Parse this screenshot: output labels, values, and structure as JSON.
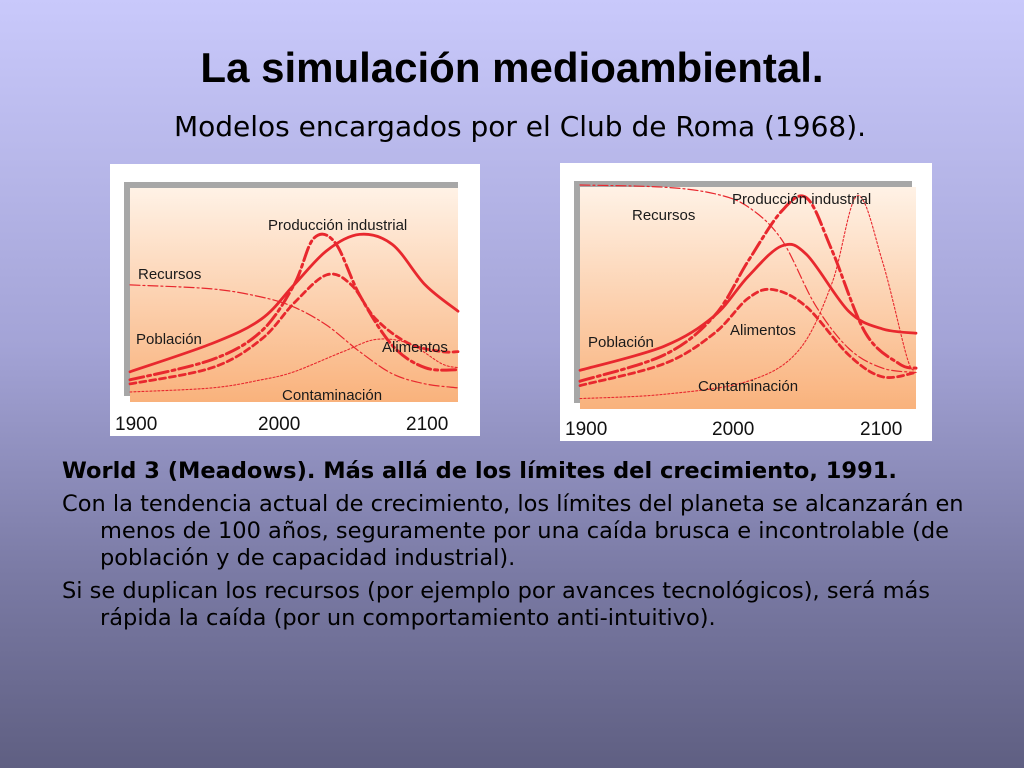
{
  "slide": {
    "title": "La simulación medioambiental.",
    "subtitle": "Modelos encargados por el Club de Roma (1968).",
    "paragraphs": [
      {
        "text": "World 3 (Meadows). Más allá de los límites del crecimiento, 1991.",
        "bold": true
      },
      {
        "text": "Con la tendencia actual de crecimiento, los límites del planeta se alcanzarán en menos de 100 años, seguramente por una caída brusca e incontrolable (de población y de capacidad industrial).",
        "bold": false
      },
      {
        "text": "Si se duplican los recursos (por ejemplo por avances tecnológicos), será más rápida la caída (por un comportamiento anti-intuitivo).",
        "bold": false
      }
    ]
  },
  "colors": {
    "curve": "#e8282e",
    "panel_top": "#fff2e6",
    "panel_bottom": "#f9b27c",
    "shadow": "#a7a7a7"
  },
  "chart_data": [
    {
      "type": "line",
      "x_ticks": [
        "1900",
        "2000",
        "2100"
      ],
      "xlim": [
        1900,
        2100
      ],
      "ylim": [
        0,
        1
      ],
      "series": [
        {
          "name": "Recursos",
          "style": "dashdot-thin",
          "points": [
            [
              1900,
              0.55
            ],
            [
              1950,
              0.53
            ],
            [
              1980,
              0.49
            ],
            [
              2000,
              0.44
            ],
            [
              2020,
              0.35
            ],
            [
              2040,
              0.22
            ],
            [
              2060,
              0.11
            ],
            [
              2080,
              0.06
            ],
            [
              2100,
              0.04
            ]
          ]
        },
        {
          "name": "Producción industrial",
          "style": "solid",
          "points": [
            [
              1900,
              0.12
            ],
            [
              1950,
              0.26
            ],
            [
              1980,
              0.38
            ],
            [
              2000,
              0.55
            ],
            [
              2020,
              0.72
            ],
            [
              2040,
              0.8
            ],
            [
              2060,
              0.75
            ],
            [
              2080,
              0.55
            ],
            [
              2100,
              0.42
            ]
          ]
        },
        {
          "name": "Alimentos",
          "style": "dashdot-bold",
          "points": [
            [
              1900,
              0.08
            ],
            [
              1950,
              0.18
            ],
            [
              1980,
              0.32
            ],
            [
              2000,
              0.55
            ],
            [
              2012,
              0.78
            ],
            [
              2025,
              0.76
            ],
            [
              2040,
              0.5
            ],
            [
              2060,
              0.25
            ],
            [
              2080,
              0.14
            ],
            [
              2100,
              0.13
            ]
          ]
        },
        {
          "name": "Población",
          "style": "dashed",
          "points": [
            [
              1900,
              0.06
            ],
            [
              1950,
              0.14
            ],
            [
              1980,
              0.28
            ],
            [
              2000,
              0.46
            ],
            [
              2020,
              0.6
            ],
            [
              2035,
              0.55
            ],
            [
              2050,
              0.38
            ],
            [
              2070,
              0.26
            ],
            [
              2090,
              0.22
            ],
            [
              2100,
              0.22
            ]
          ]
        },
        {
          "name": "Contaminación",
          "style": "dotted",
          "points": [
            [
              1900,
              0.02
            ],
            [
              1950,
              0.04
            ],
            [
              1980,
              0.08
            ],
            [
              2000,
              0.12
            ],
            [
              2030,
              0.22
            ],
            [
              2050,
              0.28
            ],
            [
              2070,
              0.26
            ],
            [
              2090,
              0.16
            ],
            [
              2100,
              0.14
            ]
          ]
        }
      ],
      "labels": {
        "Producción industrial": "Producción industrial",
        "Recursos": "Recursos",
        "Población": "Población",
        "Alimentos": "Alimentos",
        "Contaminación": "Contaminación"
      }
    },
    {
      "type": "line",
      "x_ticks": [
        "1900",
        "2000",
        "2100"
      ],
      "xlim": [
        1900,
        2100
      ],
      "ylim": [
        0,
        1
      ],
      "series": [
        {
          "name": "Recursos",
          "style": "dashdot-thin",
          "points": [
            [
              1900,
              1.0
            ],
            [
              1950,
              0.99
            ],
            [
              1980,
              0.96
            ],
            [
              2000,
              0.9
            ],
            [
              2020,
              0.75
            ],
            [
              2040,
              0.45
            ],
            [
              2060,
              0.25
            ],
            [
              2080,
              0.16
            ],
            [
              2100,
              0.14
            ]
          ]
        },
        {
          "name": "Producción industrial",
          "style": "solid",
          "points": [
            [
              1900,
              0.15
            ],
            [
              1950,
              0.26
            ],
            [
              1980,
              0.4
            ],
            [
              2000,
              0.58
            ],
            [
              2020,
              0.72
            ],
            [
              2035,
              0.68
            ],
            [
              2060,
              0.42
            ],
            [
              2080,
              0.34
            ],
            [
              2100,
              0.32
            ]
          ]
        },
        {
          "name": "Alimentos",
          "style": "dashdot-bold",
          "points": [
            [
              1900,
              0.1
            ],
            [
              1950,
              0.22
            ],
            [
              1980,
              0.4
            ],
            [
              2000,
              0.65
            ],
            [
              2020,
              0.88
            ],
            [
              2035,
              0.94
            ],
            [
              2050,
              0.7
            ],
            [
              2070,
              0.32
            ],
            [
              2090,
              0.18
            ],
            [
              2100,
              0.16
            ]
          ]
        },
        {
          "name": "Población",
          "style": "dashed",
          "points": [
            [
              1900,
              0.08
            ],
            [
              1950,
              0.18
            ],
            [
              1980,
              0.32
            ],
            [
              2000,
              0.48
            ],
            [
              2015,
              0.52
            ],
            [
              2035,
              0.44
            ],
            [
              2060,
              0.22
            ],
            [
              2080,
              0.12
            ],
            [
              2100,
              0.14
            ]
          ]
        },
        {
          "name": "Contaminación",
          "style": "dotted",
          "points": [
            [
              1900,
              0.02
            ],
            [
              1950,
              0.04
            ],
            [
              2000,
              0.1
            ],
            [
              2030,
              0.24
            ],
            [
              2050,
              0.55
            ],
            [
              2065,
              0.95
            ],
            [
              2080,
              0.65
            ],
            [
              2095,
              0.2
            ],
            [
              2100,
              0.16
            ]
          ]
        }
      ],
      "labels": {
        "Producción industrial": "Producción industrial",
        "Recursos": "Recursos",
        "Población": "Población",
        "Alimentos": "Alimentos",
        "Contaminación": "Contaminación"
      }
    }
  ]
}
